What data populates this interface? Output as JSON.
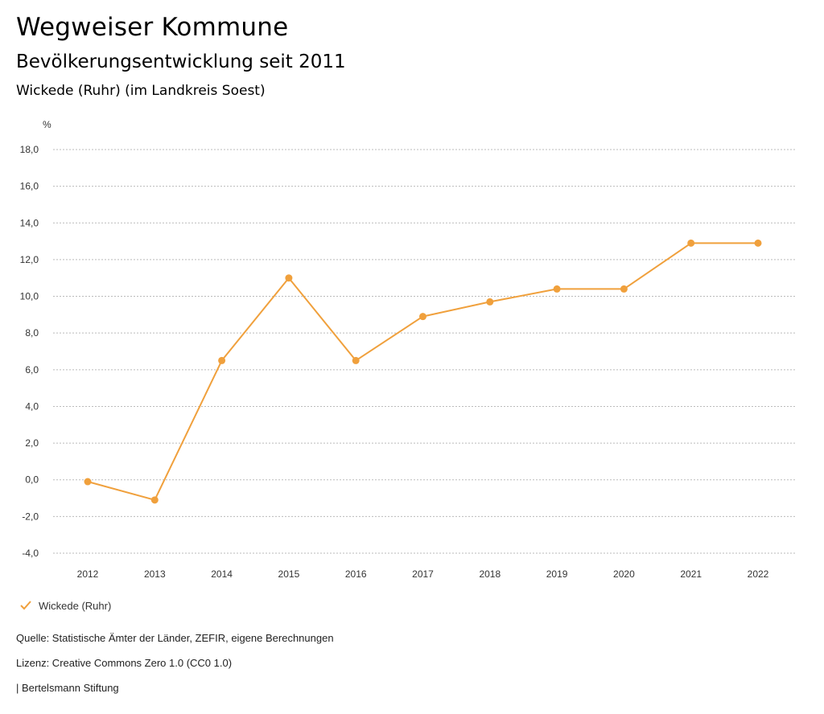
{
  "header": {
    "title": "Wegweiser Kommune",
    "subtitle": "Bevölkerungsentwicklung seit 2011",
    "region": "Wickede (Ruhr) (im Landkreis Soest)"
  },
  "chart_data": {
    "type": "line",
    "title": "Bevölkerungsentwicklung seit 2011",
    "ylabel": "%",
    "xlabel": "",
    "categories": [
      "2012",
      "2013",
      "2014",
      "2015",
      "2016",
      "2017",
      "2018",
      "2019",
      "2020",
      "2021",
      "2022"
    ],
    "series": [
      {
        "name": "Wickede (Ruhr)",
        "values": [
          -0.1,
          -1.1,
          6.5,
          11.0,
          6.5,
          8.9,
          9.7,
          10.4,
          10.4,
          12.9,
          12.9
        ]
      }
    ],
    "ylim": [
      -4.0,
      18.0
    ],
    "yticks": [
      -4.0,
      -2.0,
      0.0,
      2.0,
      4.0,
      6.0,
      8.0,
      10.0,
      12.0,
      14.0,
      16.0,
      18.0
    ],
    "ytick_labels": [
      "-4,0",
      "-2,0",
      "0,0",
      "2,0",
      "4,0",
      "6,0",
      "8,0",
      "10,0",
      "12,0",
      "14,0",
      "16,0",
      "18,0"
    ],
    "grid": true,
    "legend_position": "bottom-left",
    "colors": {
      "line": "#f0a03c",
      "grid": "#bbbbbb",
      "axis_text": "#333333"
    }
  },
  "legend": {
    "label": "Wickede (Ruhr)",
    "icon": "check-icon"
  },
  "footer": {
    "source": "Quelle: Statistische Ämter der Länder, ZEFIR, eigene Berechnungen",
    "license": "Lizenz: Creative Commons Zero 1.0 (CC0 1.0)",
    "publisher": "| Bertelsmann Stiftung"
  }
}
